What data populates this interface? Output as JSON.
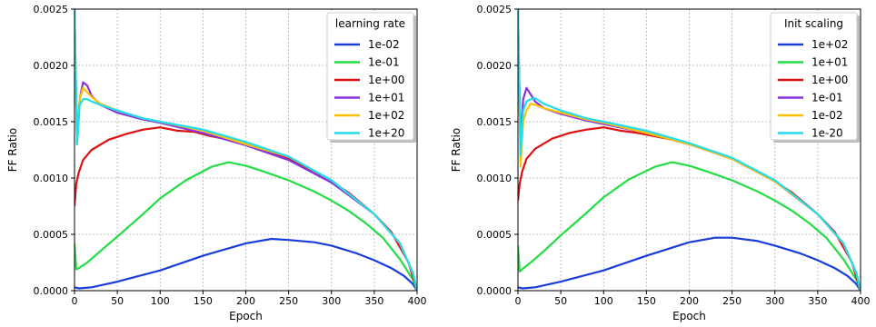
{
  "chart_data": [
    {
      "type": "line",
      "xlabel": "Epoch",
      "ylabel": "FF Ratio",
      "xlim": [
        0,
        400
      ],
      "ylim": [
        0,
        0.0025
      ],
      "x_ticks": [
        0,
        50,
        100,
        150,
        200,
        250,
        300,
        350,
        400
      ],
      "y_ticks": [
        0.0,
        0.0005,
        0.001,
        0.0015,
        0.002,
        0.0025
      ],
      "y_tick_labels": [
        "0.0000",
        "0.0005",
        "0.0010",
        "0.0015",
        "0.0020",
        "0.0025"
      ],
      "grid": true,
      "legend_title": "learning rate",
      "legend_position": "top-right",
      "series": [
        {
          "name": "1e-02",
          "color": "#1a3cd9",
          "x": [
            0,
            5,
            20,
            50,
            100,
            150,
            200,
            230,
            250,
            280,
            300,
            330,
            350,
            370,
            385,
            395,
            400
          ],
          "y": [
            3e-05,
            2e-05,
            3e-05,
            8e-05,
            0.00018,
            0.00031,
            0.00042,
            0.00046,
            0.00045,
            0.00043,
            0.0004,
            0.00033,
            0.00027,
            0.0002,
            0.00013,
            6e-05,
            0.0
          ]
        },
        {
          "name": "1e-01",
          "color": "#22dd44",
          "x": [
            0,
            2,
            5,
            15,
            30,
            50,
            80,
            100,
            130,
            160,
            180,
            200,
            220,
            250,
            280,
            300,
            320,
            340,
            360,
            380,
            395,
            400
          ],
          "y": [
            0.00042,
            0.00019,
            0.0002,
            0.00025,
            0.00035,
            0.00048,
            0.00068,
            0.00082,
            0.00098,
            0.0011,
            0.00114,
            0.00111,
            0.00106,
            0.00098,
            0.00088,
            0.0008,
            0.00071,
            0.0006,
            0.00047,
            0.00028,
            0.0001,
            0.0
          ]
        },
        {
          "name": "1e+00",
          "color": "#dd1111",
          "x": [
            0,
            2,
            5,
            10,
            20,
            40,
            60,
            80,
            100,
            120,
            140,
            160,
            180,
            200,
            220,
            250,
            280,
            300,
            320,
            350,
            370,
            390,
            400
          ],
          "y": [
            0.00075,
            0.00095,
            0.00105,
            0.00116,
            0.00125,
            0.00134,
            0.00139,
            0.00143,
            0.00145,
            0.00142,
            0.00141,
            0.00137,
            0.00134,
            0.0013,
            0.00125,
            0.00117,
            0.00106,
            0.00097,
            0.00087,
            0.00068,
            0.00052,
            0.00025,
            0.0
          ]
        },
        {
          "name": "1e+01",
          "color": "#8833dd",
          "x": [
            0,
            3,
            6,
            10,
            15,
            20,
            30,
            50,
            80,
            100,
            150,
            200,
            250,
            300,
            350,
            380,
            395,
            400
          ],
          "y": [
            0.0025,
            0.0013,
            0.0017,
            0.00185,
            0.00182,
            0.00173,
            0.00165,
            0.00158,
            0.00152,
            0.00149,
            0.0014,
            0.00129,
            0.00116,
            0.00096,
            0.00068,
            0.00042,
            0.00016,
            0.0
          ]
        },
        {
          "name": "1e+02",
          "color": "#ffc000",
          "x": [
            0,
            3,
            6,
            10,
            15,
            20,
            30,
            50,
            80,
            100,
            150,
            200,
            250,
            300,
            350,
            380,
            395,
            400
          ],
          "y": [
            0.0025,
            0.0013,
            0.0017,
            0.0018,
            0.00176,
            0.00172,
            0.00166,
            0.0016,
            0.00153,
            0.0015,
            0.00142,
            0.0013,
            0.00119,
            0.00098,
            0.00068,
            0.00042,
            0.00016,
            0.0
          ]
        },
        {
          "name": "1e+20",
          "color": "#22ddee",
          "x": [
            0,
            3,
            6,
            10,
            15,
            20,
            30,
            50,
            80,
            100,
            150,
            200,
            250,
            300,
            350,
            380,
            395,
            400
          ],
          "y": [
            0.0025,
            0.0013,
            0.00165,
            0.0017,
            0.0017,
            0.00168,
            0.00165,
            0.0016,
            0.00153,
            0.0015,
            0.00143,
            0.00132,
            0.00119,
            0.00098,
            0.00068,
            0.00042,
            0.00016,
            0.0
          ]
        }
      ]
    },
    {
      "type": "line",
      "xlabel": "Epoch",
      "ylabel": "FF Ratio",
      "xlim": [
        0,
        400
      ],
      "ylim": [
        0,
        0.0025
      ],
      "x_ticks": [
        0,
        50,
        100,
        150,
        200,
        250,
        300,
        350,
        400
      ],
      "y_ticks": [
        0.0,
        0.0005,
        0.001,
        0.0015,
        0.002,
        0.0025
      ],
      "y_tick_labels": [
        "0.0000",
        "0.0005",
        "0.0010",
        "0.0015",
        "0.0020",
        "0.0025"
      ],
      "grid": true,
      "legend_title": "Init scaling",
      "legend_position": "top-right",
      "series": [
        {
          "name": "1e+02",
          "color": "#1a3cd9",
          "x": [
            0,
            5,
            20,
            50,
            100,
            150,
            200,
            230,
            250,
            280,
            300,
            330,
            350,
            370,
            385,
            395,
            400
          ],
          "y": [
            3e-05,
            2e-05,
            3e-05,
            8e-05,
            0.00018,
            0.00031,
            0.00043,
            0.00047,
            0.00047,
            0.00044,
            0.0004,
            0.00033,
            0.00027,
            0.0002,
            0.00013,
            6e-05,
            0.0
          ]
        },
        {
          "name": "1e+01",
          "color": "#22dd44",
          "x": [
            0,
            2,
            5,
            15,
            30,
            50,
            80,
            100,
            130,
            160,
            180,
            200,
            220,
            250,
            280,
            300,
            320,
            340,
            360,
            380,
            395,
            400
          ],
          "y": [
            0.0004,
            0.00017,
            0.00019,
            0.00025,
            0.00035,
            0.00049,
            0.00069,
            0.00083,
            0.00099,
            0.0011,
            0.00114,
            0.00111,
            0.00106,
            0.00098,
            0.00088,
            0.0008,
            0.00071,
            0.0006,
            0.00047,
            0.00028,
            0.0001,
            0.0
          ]
        },
        {
          "name": "1e+00",
          "color": "#dd1111",
          "x": [
            0,
            2,
            5,
            10,
            20,
            40,
            60,
            80,
            100,
            120,
            140,
            160,
            180,
            200,
            220,
            250,
            280,
            300,
            320,
            350,
            370,
            390,
            400
          ],
          "y": [
            0.0008,
            0.00095,
            0.00106,
            0.00117,
            0.00126,
            0.00135,
            0.0014,
            0.00143,
            0.00145,
            0.00142,
            0.0014,
            0.00137,
            0.00134,
            0.0013,
            0.00125,
            0.00117,
            0.00106,
            0.00097,
            0.00087,
            0.00068,
            0.00052,
            0.00025,
            0.0
          ]
        },
        {
          "name": "1e-01",
          "color": "#8833dd",
          "x": [
            0,
            3,
            6,
            10,
            15,
            20,
            30,
            50,
            80,
            100,
            150,
            200,
            250,
            300,
            350,
            380,
            395,
            400
          ],
          "y": [
            0.0025,
            0.0013,
            0.0017,
            0.0018,
            0.00174,
            0.00168,
            0.00162,
            0.00157,
            0.00151,
            0.00148,
            0.0014,
            0.0013,
            0.00117,
            0.00097,
            0.00068,
            0.00042,
            0.00016,
            0.0
          ]
        },
        {
          "name": "1e-02",
          "color": "#ffc000",
          "x": [
            0,
            3,
            6,
            10,
            15,
            20,
            30,
            50,
            80,
            100,
            150,
            200,
            250,
            300,
            350,
            380,
            395,
            400
          ],
          "y": [
            0.0025,
            0.0011,
            0.0015,
            0.0016,
            0.00166,
            0.00165,
            0.00162,
            0.00158,
            0.00152,
            0.00149,
            0.0014,
            0.0013,
            0.00117,
            0.00097,
            0.00068,
            0.00042,
            0.00016,
            0.0
          ]
        },
        {
          "name": "1e-20",
          "color": "#22ddee",
          "x": [
            0,
            3,
            6,
            10,
            15,
            20,
            30,
            50,
            80,
            100,
            150,
            200,
            250,
            300,
            350,
            380,
            395,
            400
          ],
          "y": [
            0.0025,
            0.0012,
            0.0016,
            0.00168,
            0.0017,
            0.00171,
            0.00166,
            0.0016,
            0.00153,
            0.0015,
            0.00142,
            0.00131,
            0.00118,
            0.00098,
            0.00068,
            0.00042,
            0.00016,
            0.0
          ]
        }
      ]
    }
  ]
}
